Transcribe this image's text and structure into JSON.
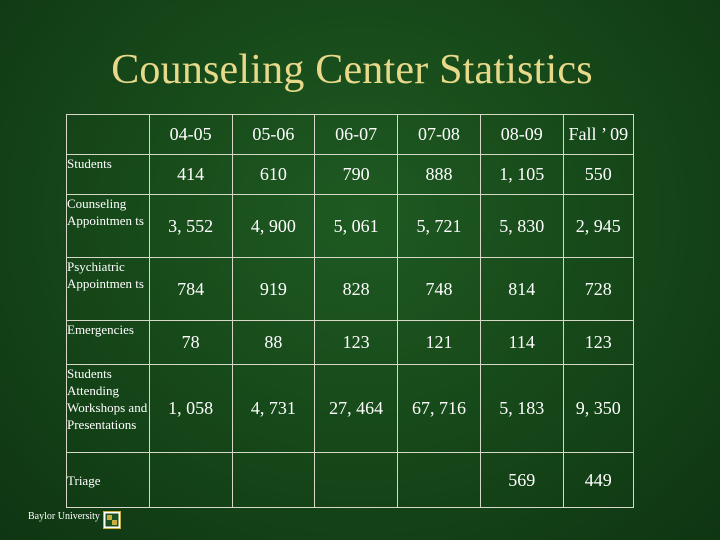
{
  "title": "Counseling Center Statistics",
  "columns": [
    "04-05",
    "05-06",
    "06-07",
    "07-08",
    "08-09",
    "Fall ’ 09"
  ],
  "rows": [
    {
      "label": "Students",
      "values": [
        "414",
        "610",
        "790",
        "888",
        "1, 105",
        "550"
      ]
    },
    {
      "label": "Counseling Appointmen ts",
      "values": [
        "3, 552",
        "4, 900",
        "5, 061",
        "5, 721",
        "5, 830",
        "2, 945"
      ]
    },
    {
      "label": "Psychiatric Appointmen ts",
      "values": [
        "784",
        "919",
        "828",
        "748",
        "814",
        "728"
      ]
    },
    {
      "label": "Emergencies",
      "values": [
        "78",
        "88",
        "123",
        "121",
        "114",
        "123"
      ]
    },
    {
      "label": "Students Attending Workshops and Presentations",
      "values": [
        "1, 058",
        "4, 731",
        "27, 464",
        "67, 716",
        "5, 183",
        "9, 350"
      ]
    },
    {
      "label": "Triage",
      "values": [
        "",
        "",
        "",
        "",
        "569",
        "449"
      ]
    }
  ],
  "footer": {
    "institution": "Baylor University"
  },
  "colors": {
    "background": "#174a1a",
    "title": "#e8d98a",
    "grid": "#d8d8c8",
    "logo": "#c8b040"
  },
  "icons": {
    "logo": "baylor-logo-icon"
  }
}
